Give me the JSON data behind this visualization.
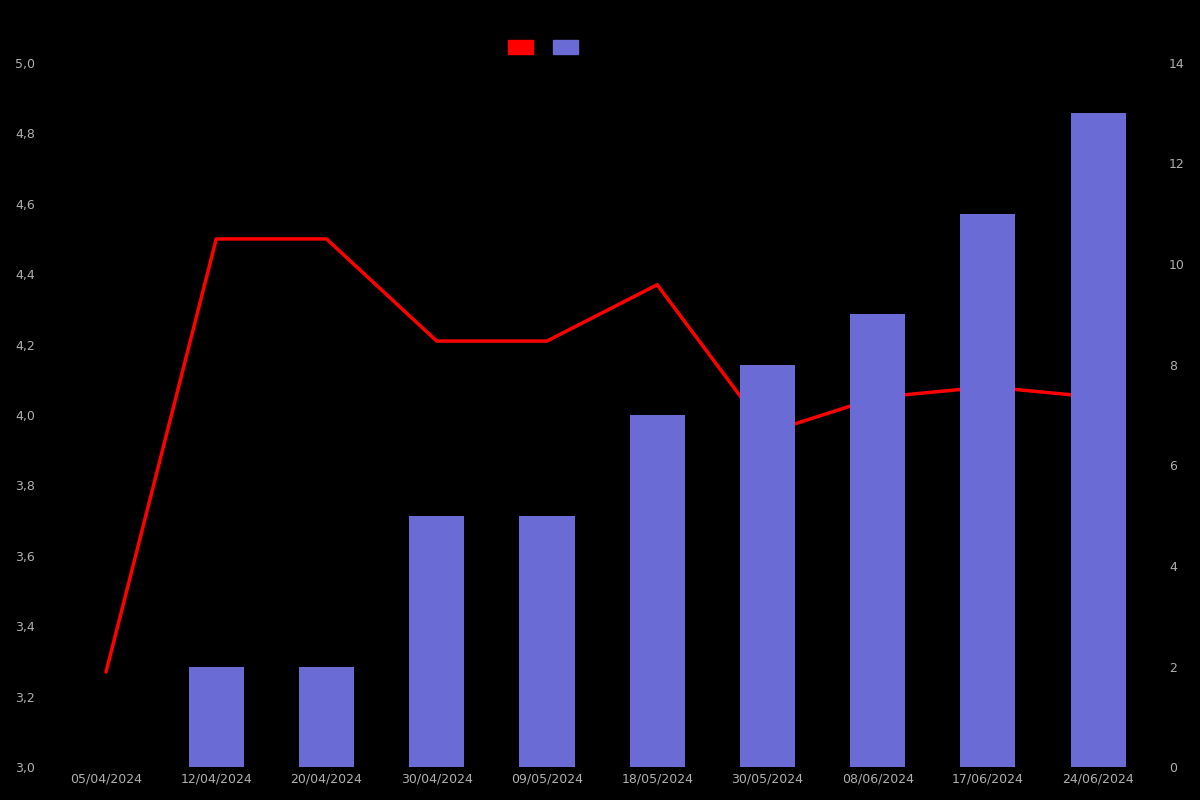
{
  "dates": [
    "05/04/2024",
    "12/04/2024",
    "20/04/2024",
    "30/04/2024",
    "09/05/2024",
    "18/05/2024",
    "30/05/2024",
    "08/06/2024",
    "17/06/2024",
    "24/06/2024"
  ],
  "bar_values": [
    0,
    2,
    2,
    5,
    5,
    7,
    8,
    9,
    11,
    13
  ],
  "line_values": [
    3.27,
    4.5,
    4.5,
    4.21,
    4.21,
    4.37,
    3.95,
    4.05,
    4.08,
    4.05
  ],
  "bar_color": "#6B6BD6",
  "line_color": "#ff0000",
  "background_color": "#000000",
  "text_color": "#b0b0b0",
  "ylim_left": [
    3.0,
    5.0
  ],
  "ylim_right": [
    0,
    14
  ],
  "legend_patch_colors": [
    "#ff0000",
    "#6B6BD6"
  ],
  "figsize": [
    12,
    8
  ],
  "dpi": 100
}
